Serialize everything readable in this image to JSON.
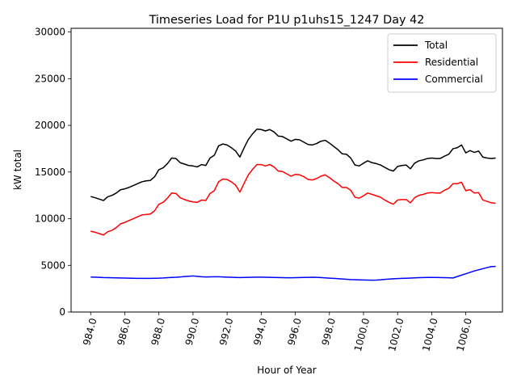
{
  "chart_data": {
    "type": "line",
    "title": "Timeseries Load for P1U p1uhs15_1247  Day 42",
    "xlabel": "Hour of Year",
    "ylabel": "kW total",
    "xlim": [
      982.85,
      1008.15
    ],
    "ylim": [
      0,
      30400
    ],
    "xticks": [
      984,
      986,
      988,
      990,
      992,
      994,
      996,
      998,
      1000,
      1002,
      1004,
      1006
    ],
    "xtick_labels": [
      "984.0",
      "986.0",
      "988.0",
      "990.0",
      "992.0",
      "994.0",
      "996.0",
      "998.0",
      "1000.0",
      "1002.0",
      "1004.0",
      "1006.0"
    ],
    "yticks": [
      0,
      5000,
      10000,
      15000,
      20000,
      25000,
      30000
    ],
    "ytick_labels": [
      "0",
      "5000",
      "10000",
      "15000",
      "20000",
      "25000",
      "30000"
    ],
    "legend_position": "top-right",
    "x": [
      984.0,
      984.25,
      984.5,
      984.75,
      985.0,
      985.25,
      985.5,
      985.75,
      986.0,
      986.25,
      986.5,
      986.75,
      987.0,
      987.25,
      987.5,
      987.75,
      988.0,
      988.25,
      988.5,
      988.75,
      989.0,
      989.25,
      989.5,
      989.75,
      990.0,
      990.25,
      990.5,
      990.75,
      991.0,
      991.25,
      991.5,
      991.75,
      992.0,
      992.25,
      992.5,
      992.75,
      993.0,
      993.25,
      993.5,
      993.75,
      994.0,
      994.25,
      994.5,
      994.75,
      995.0,
      995.25,
      995.5,
      995.75,
      996.0,
      996.25,
      996.5,
      996.75,
      997.0,
      997.25,
      997.5,
      997.75,
      998.0,
      998.25,
      998.5,
      998.75,
      999.0,
      999.25,
      999.5,
      999.75,
      1000.0,
      1000.25,
      1000.5,
      1000.75,
      1001.0,
      1001.25,
      1001.5,
      1001.75,
      1002.0,
      1002.25,
      1002.5,
      1002.75,
      1003.0,
      1003.25,
      1003.5,
      1003.75,
      1004.0,
      1004.25,
      1004.5,
      1004.75,
      1005.0,
      1005.25,
      1005.5,
      1005.75,
      1006.0,
      1006.25,
      1006.5,
      1006.75,
      1007.0,
      1007.25,
      1007.5,
      1007.75
    ],
    "series": [
      {
        "name": "Total",
        "color": "#000000",
        "values": [
          12380,
          12250,
          12100,
          11950,
          12350,
          12500,
          12750,
          13100,
          13200,
          13350,
          13550,
          13750,
          13950,
          14050,
          14100,
          14500,
          15250,
          15450,
          15900,
          16500,
          16450,
          16000,
          15850,
          15700,
          15650,
          15550,
          15800,
          15700,
          16500,
          16800,
          17800,
          18000,
          17900,
          17600,
          17250,
          16600,
          17600,
          18500,
          19100,
          19600,
          19550,
          19400,
          19550,
          19300,
          18850,
          18800,
          18550,
          18300,
          18500,
          18450,
          18200,
          17950,
          17900,
          18050,
          18300,
          18400,
          18100,
          17750,
          17400,
          16950,
          16900,
          16500,
          15750,
          15650,
          15950,
          16200,
          16000,
          15900,
          15750,
          15500,
          15250,
          15100,
          15600,
          15700,
          15750,
          15350,
          15950,
          16200,
          16300,
          16450,
          16500,
          16450,
          16450,
          16700,
          16900,
          17500,
          17600,
          17900,
          17050,
          17300,
          17100,
          17250,
          16600,
          16500,
          16450,
          16500
        ]
      },
      {
        "name": "Residential",
        "color": "#ff0000",
        "values": [
          8650,
          8550,
          8400,
          8250,
          8600,
          8750,
          9050,
          9450,
          9600,
          9800,
          10000,
          10200,
          10400,
          10450,
          10500,
          10850,
          11550,
          11750,
          12200,
          12750,
          12700,
          12250,
          12050,
          11900,
          11800,
          11750,
          12000,
          11950,
          12700,
          13000,
          13950,
          14250,
          14200,
          13950,
          13600,
          12850,
          13800,
          14700,
          15300,
          15800,
          15800,
          15650,
          15800,
          15550,
          15100,
          15050,
          14800,
          14550,
          14750,
          14700,
          14500,
          14200,
          14150,
          14300,
          14550,
          14700,
          14400,
          14050,
          13750,
          13350,
          13350,
          13050,
          12300,
          12200,
          12450,
          12750,
          12600,
          12450,
          12300,
          12000,
          11750,
          11550,
          12000,
          12050,
          12050,
          11700,
          12250,
          12500,
          12600,
          12750,
          12800,
          12750,
          12750,
          13050,
          13250,
          13750,
          13750,
          13900,
          13000,
          13100,
          12750,
          12800,
          12000,
          11850,
          11700,
          11650
        ]
      },
      {
        "name": "Commercial",
        "color": "#0000ff",
        "values": [
          3750,
          3730,
          3710,
          3690,
          3680,
          3670,
          3660,
          3650,
          3640,
          3630,
          3620,
          3610,
          3600,
          3600,
          3610,
          3620,
          3630,
          3650,
          3680,
          3700,
          3720,
          3760,
          3800,
          3830,
          3860,
          3820,
          3780,
          3760,
          3770,
          3780,
          3780,
          3760,
          3740,
          3720,
          3700,
          3690,
          3700,
          3710,
          3720,
          3730,
          3730,
          3720,
          3710,
          3700,
          3690,
          3680,
          3670,
          3670,
          3680,
          3690,
          3700,
          3710,
          3720,
          3710,
          3690,
          3660,
          3630,
          3600,
          3570,
          3540,
          3510,
          3480,
          3460,
          3440,
          3430,
          3420,
          3410,
          3420,
          3450,
          3500,
          3530,
          3560,
          3580,
          3600,
          3620,
          3640,
          3660,
          3680,
          3690,
          3700,
          3700,
          3700,
          3690,
          3680,
          3670,
          3650,
          3800,
          3950,
          4100,
          4250,
          4400,
          4520,
          4640,
          4760,
          4870,
          4880
        ]
      }
    ]
  }
}
